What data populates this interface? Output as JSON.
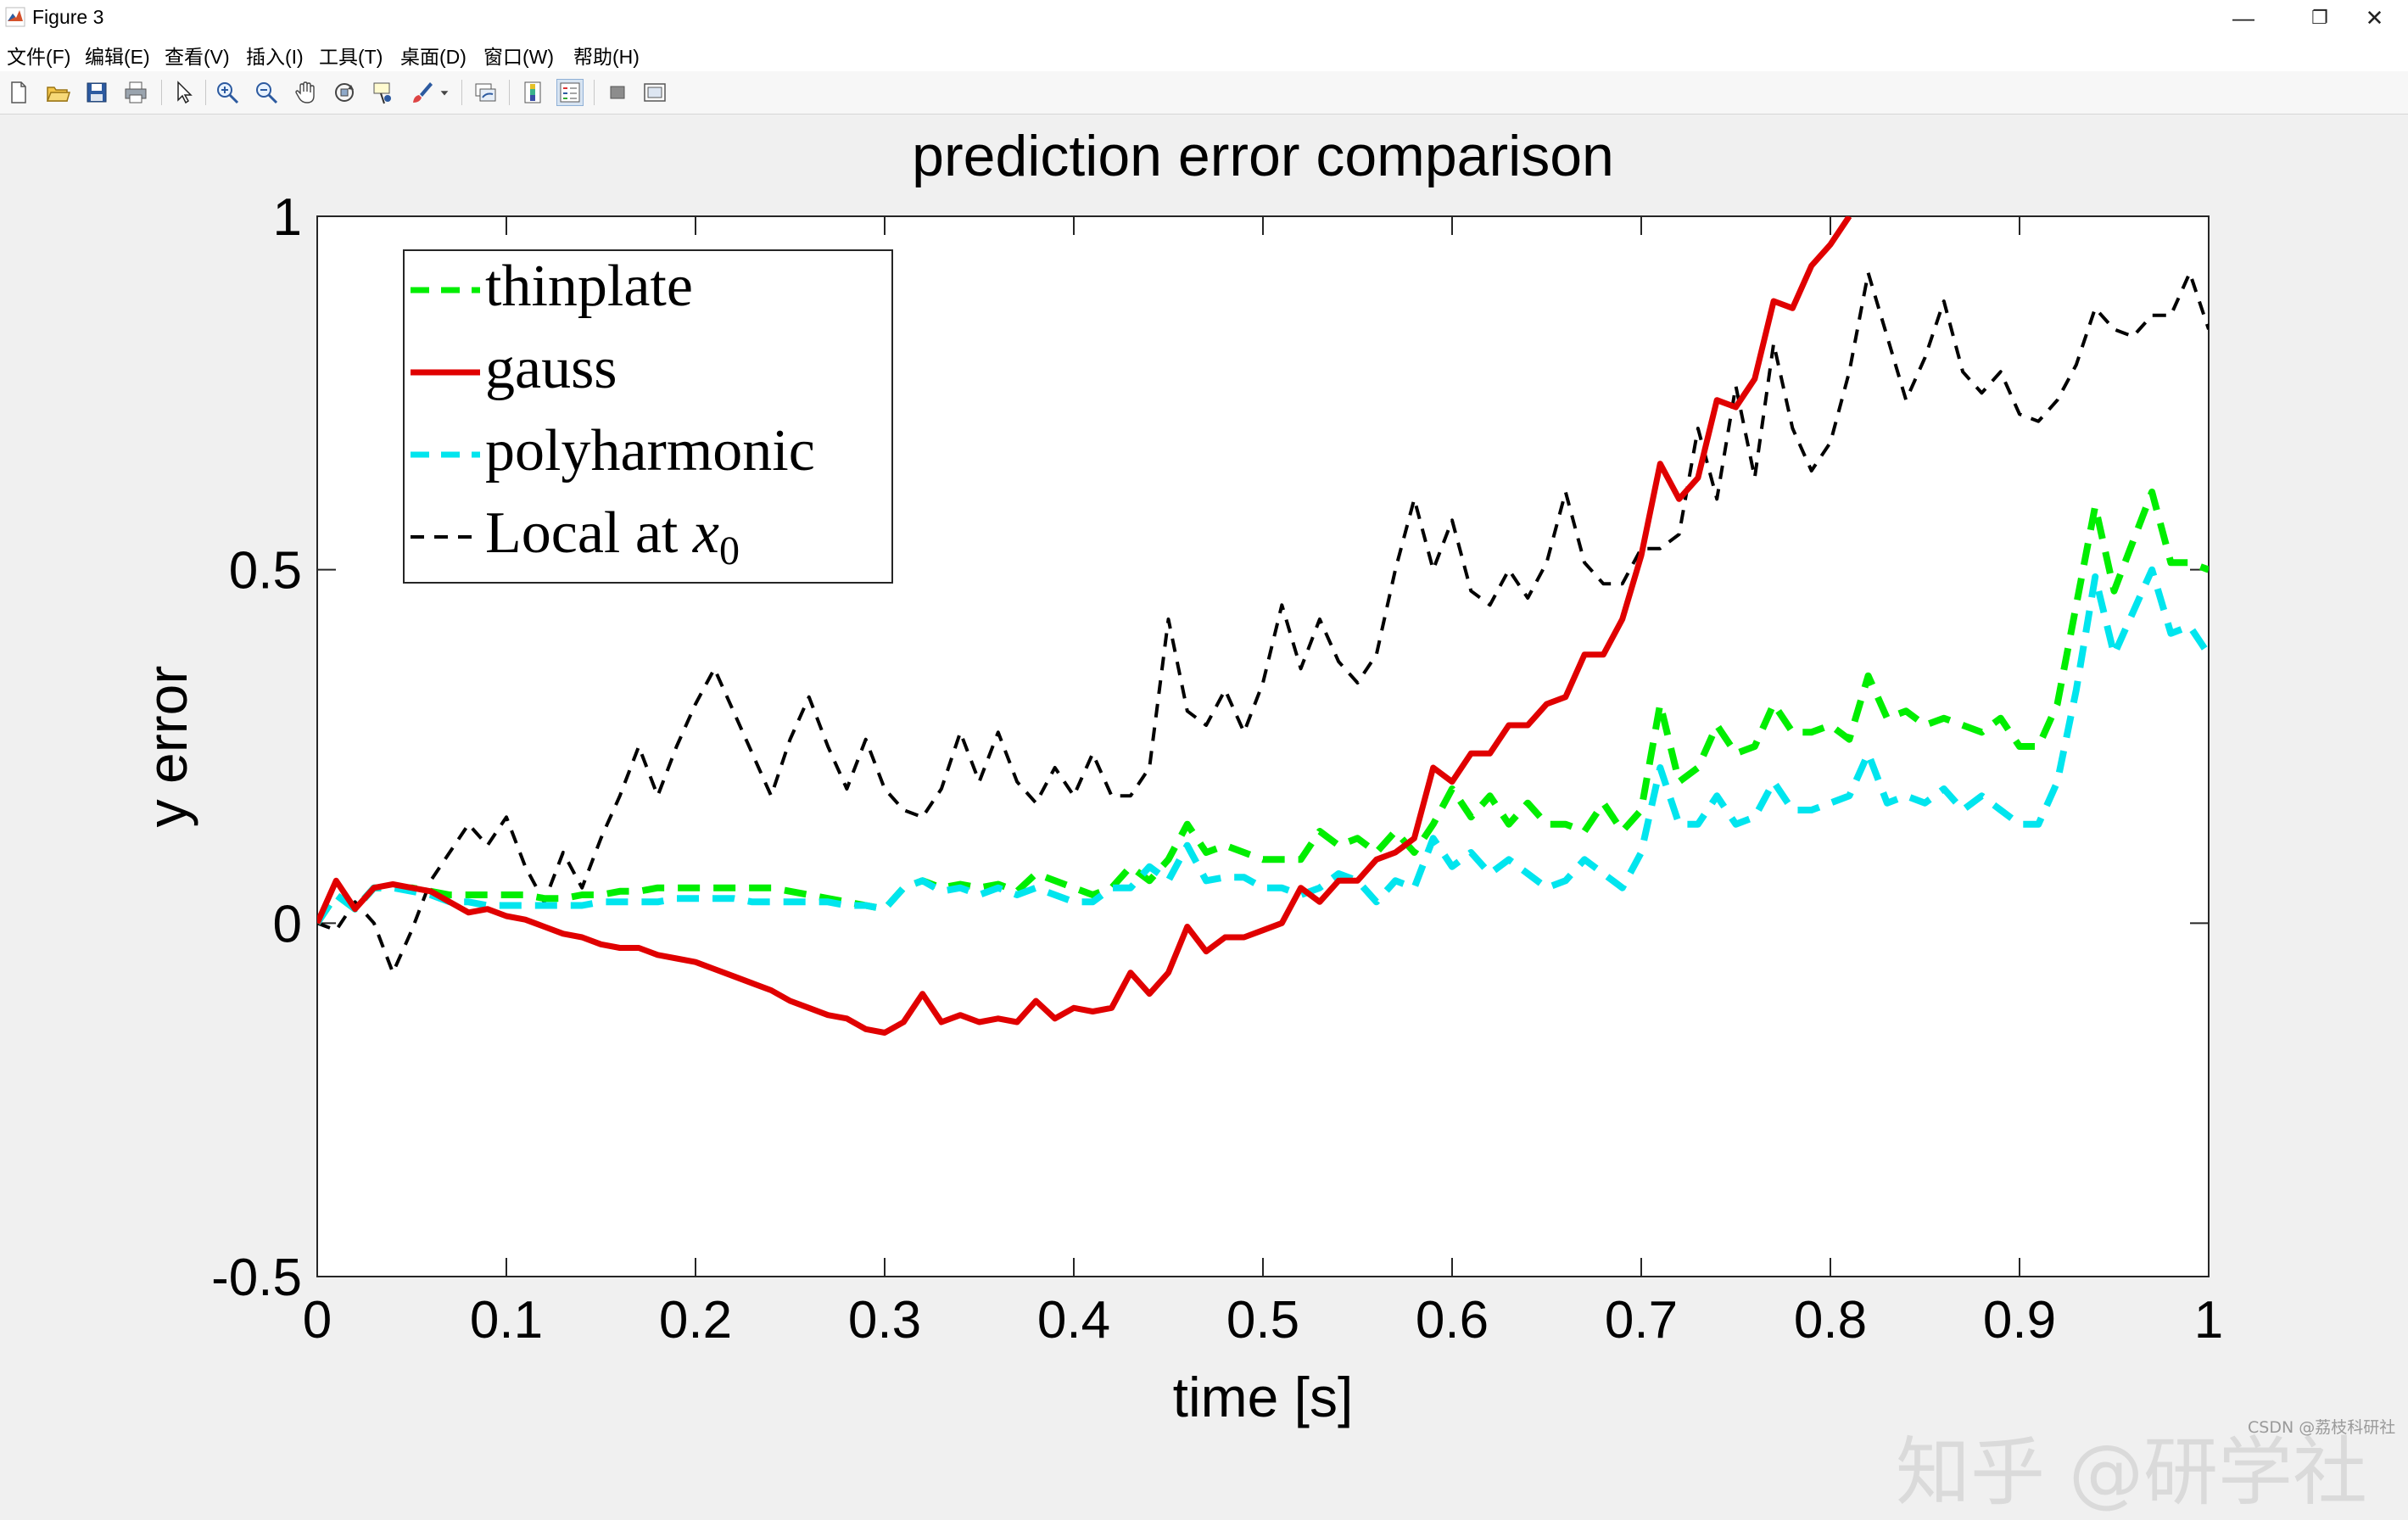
{
  "window": {
    "title": "Figure 3",
    "minimize_glyph": "—",
    "restore_glyph": "❐",
    "close_glyph": "✕"
  },
  "menu": [
    "文件(F)",
    "编辑(E)",
    "查看(V)",
    "插入(I)",
    "工具(T)",
    "桌面(D)",
    "窗口(W)",
    "帮助(H)"
  ],
  "toolbar_icons": [
    "new-figure-icon",
    "open-file-icon",
    "save-icon",
    "print-icon",
    "pointer-icon",
    "zoom-in-icon",
    "zoom-out-icon",
    "pan-hand-icon",
    "rotate-3d-icon",
    "data-cursor-icon",
    "brush-icon",
    "dropdown-arrow-icon",
    "link-plot-icon",
    "colorbar-icon",
    "legend-icon",
    "hide-plot-tools-icon",
    "show-plot-tools-icon"
  ],
  "watermark": "知乎 @研学社",
  "credit": "CSDN @荔枝科研社",
  "colors": {
    "thinplate": "#00ee00",
    "gauss": "#e00000",
    "polyharmonic": "#00e5ee",
    "local": "#000000",
    "axes_bg": "#ffffff",
    "figure_bg": "#f0f0f0"
  },
  "chart_data": {
    "type": "line",
    "title": "prediction error comparison",
    "xlabel": "time [s]",
    "ylabel": "y error",
    "xlim": [
      0,
      1
    ],
    "ylim": [
      -0.5,
      1
    ],
    "xticks": [
      "0",
      "0.1",
      "0.2",
      "0.3",
      "0.4",
      "0.5",
      "0.6",
      "0.7",
      "0.8",
      "0.9",
      "1"
    ],
    "yticks": [
      "-0.5",
      "0",
      "0.5",
      "1"
    ],
    "grid": false,
    "legend_position": "top-left",
    "series": [
      {
        "name": "thinplate",
        "style": "dashed",
        "x": [
          0,
          0.01,
          0.02,
          0.03,
          0.04,
          0.05,
          0.06,
          0.07,
          0.08,
          0.09,
          0.1,
          0.11,
          0.12,
          0.13,
          0.14,
          0.15,
          0.16,
          0.17,
          0.18,
          0.19,
          0.2,
          0.21,
          0.22,
          0.23,
          0.24,
          0.25,
          0.26,
          0.27,
          0.28,
          0.29,
          0.3,
          0.31,
          0.32,
          0.33,
          0.34,
          0.35,
          0.36,
          0.37,
          0.38,
          0.39,
          0.4,
          0.41,
          0.42,
          0.43,
          0.44,
          0.45,
          0.46,
          0.47,
          0.48,
          0.49,
          0.5,
          0.51,
          0.52,
          0.53,
          0.54,
          0.55,
          0.56,
          0.57,
          0.58,
          0.59,
          0.6,
          0.61,
          0.62,
          0.63,
          0.64,
          0.65,
          0.66,
          0.67,
          0.68,
          0.69,
          0.7,
          0.71,
          0.72,
          0.73,
          0.74,
          0.75,
          0.76,
          0.77,
          0.78,
          0.79,
          0.8,
          0.81,
          0.82,
          0.83,
          0.84,
          0.85,
          0.86,
          0.87,
          0.88,
          0.89,
          0.9,
          0.91,
          0.92,
          0.93,
          0.94,
          0.95,
          0.96,
          0.97,
          0.98,
          0.99,
          1.0
        ],
        "y": [
          0,
          0.04,
          0.02,
          0.05,
          0.05,
          0.05,
          0.045,
          0.04,
          0.04,
          0.04,
          0.04,
          0.04,
          0.035,
          0.035,
          0.04,
          0.04,
          0.045,
          0.045,
          0.05,
          0.05,
          0.05,
          0.05,
          0.05,
          0.05,
          0.05,
          0.045,
          0.04,
          0.035,
          0.03,
          0.025,
          0.02,
          0.05,
          0.06,
          0.05,
          0.055,
          0.05,
          0.055,
          0.045,
          0.07,
          0.06,
          0.05,
          0.04,
          0.05,
          0.08,
          0.06,
          0.09,
          0.14,
          0.1,
          0.11,
          0.1,
          0.09,
          0.09,
          0.09,
          0.13,
          0.11,
          0.12,
          0.1,
          0.13,
          0.1,
          0.14,
          0.19,
          0.15,
          0.18,
          0.14,
          0.17,
          0.14,
          0.14,
          0.13,
          0.17,
          0.13,
          0.16,
          0.31,
          0.2,
          0.22,
          0.28,
          0.24,
          0.25,
          0.31,
          0.27,
          0.27,
          0.28,
          0.26,
          0.35,
          0.29,
          0.3,
          0.28,
          0.29,
          0.28,
          0.27,
          0.29,
          0.25,
          0.25,
          0.31,
          0.45,
          0.59,
          0.47,
          0.54,
          0.61,
          0.51,
          0.51,
          0.5
        ]
      },
      {
        "name": "gauss",
        "style": "solid",
        "x": [
          0,
          0.01,
          0.02,
          0.03,
          0.04,
          0.05,
          0.06,
          0.07,
          0.08,
          0.09,
          0.1,
          0.11,
          0.12,
          0.13,
          0.14,
          0.15,
          0.16,
          0.17,
          0.18,
          0.19,
          0.2,
          0.21,
          0.22,
          0.23,
          0.24,
          0.25,
          0.26,
          0.27,
          0.28,
          0.29,
          0.3,
          0.31,
          0.32,
          0.33,
          0.34,
          0.35,
          0.36,
          0.37,
          0.38,
          0.39,
          0.4,
          0.41,
          0.42,
          0.43,
          0.44,
          0.45,
          0.46,
          0.47,
          0.48,
          0.49,
          0.5,
          0.51,
          0.52,
          0.53,
          0.54,
          0.55,
          0.56,
          0.57,
          0.58,
          0.59,
          0.6,
          0.61,
          0.62,
          0.63,
          0.64,
          0.65,
          0.66,
          0.67,
          0.68,
          0.69,
          0.7,
          0.71,
          0.72,
          0.73,
          0.74,
          0.75,
          0.76,
          0.77,
          0.78,
          0.79,
          0.8,
          0.81
        ],
        "y": [
          0,
          0.06,
          0.02,
          0.05,
          0.055,
          0.05,
          0.045,
          0.03,
          0.015,
          0.02,
          0.01,
          0.005,
          -0.005,
          -0.015,
          -0.02,
          -0.03,
          -0.035,
          -0.035,
          -0.045,
          -0.05,
          -0.055,
          -0.065,
          -0.075,
          -0.085,
          -0.095,
          -0.11,
          -0.12,
          -0.13,
          -0.135,
          -0.15,
          -0.155,
          -0.14,
          -0.1,
          -0.14,
          -0.13,
          -0.14,
          -0.135,
          -0.14,
          -0.11,
          -0.135,
          -0.12,
          -0.125,
          -0.12,
          -0.07,
          -0.1,
          -0.07,
          -0.005,
          -0.04,
          -0.02,
          -0.02,
          -0.01,
          0,
          0.05,
          0.03,
          0.06,
          0.06,
          0.09,
          0.1,
          0.12,
          0.22,
          0.2,
          0.24,
          0.24,
          0.28,
          0.28,
          0.31,
          0.32,
          0.38,
          0.38,
          0.43,
          0.52,
          0.65,
          0.6,
          0.63,
          0.74,
          0.73,
          0.77,
          0.88,
          0.87,
          0.93,
          0.96,
          1.0
        ]
      },
      {
        "name": "polyharmonic",
        "style": "dashed",
        "x": [
          0,
          0.01,
          0.02,
          0.03,
          0.04,
          0.05,
          0.06,
          0.07,
          0.08,
          0.09,
          0.1,
          0.11,
          0.12,
          0.13,
          0.14,
          0.15,
          0.16,
          0.17,
          0.18,
          0.19,
          0.2,
          0.21,
          0.22,
          0.23,
          0.24,
          0.25,
          0.26,
          0.27,
          0.28,
          0.29,
          0.3,
          0.31,
          0.32,
          0.33,
          0.34,
          0.35,
          0.36,
          0.37,
          0.38,
          0.39,
          0.4,
          0.41,
          0.42,
          0.43,
          0.44,
          0.45,
          0.46,
          0.47,
          0.48,
          0.49,
          0.5,
          0.51,
          0.52,
          0.53,
          0.54,
          0.55,
          0.56,
          0.57,
          0.58,
          0.59,
          0.6,
          0.61,
          0.62,
          0.63,
          0.64,
          0.65,
          0.66,
          0.67,
          0.68,
          0.69,
          0.7,
          0.71,
          0.72,
          0.73,
          0.74,
          0.75,
          0.76,
          0.77,
          0.78,
          0.79,
          0.8,
          0.81,
          0.82,
          0.83,
          0.84,
          0.85,
          0.86,
          0.87,
          0.88,
          0.89,
          0.9,
          0.91,
          0.92,
          0.93,
          0.94,
          0.95,
          0.96,
          0.97,
          0.98,
          0.99,
          1.0
        ],
        "y": [
          0,
          0.04,
          0.02,
          0.05,
          0.05,
          0.045,
          0.04,
          0.03,
          0.03,
          0.025,
          0.025,
          0.025,
          0.025,
          0.025,
          0.025,
          0.03,
          0.03,
          0.03,
          0.03,
          0.035,
          0.035,
          0.035,
          0.035,
          0.03,
          0.03,
          0.03,
          0.03,
          0.03,
          0.025,
          0.025,
          0.02,
          0.05,
          0.06,
          0.045,
          0.05,
          0.04,
          0.05,
          0.04,
          0.05,
          0.04,
          0.03,
          0.03,
          0.05,
          0.05,
          0.08,
          0.06,
          0.11,
          0.06,
          0.065,
          0.065,
          0.05,
          0.05,
          0.04,
          0.05,
          0.07,
          0.06,
          0.03,
          0.06,
          0.05,
          0.12,
          0.08,
          0.1,
          0.07,
          0.09,
          0.07,
          0.05,
          0.06,
          0.09,
          0.07,
          0.05,
          0.1,
          0.22,
          0.14,
          0.14,
          0.18,
          0.14,
          0.15,
          0.2,
          0.16,
          0.16,
          0.17,
          0.18,
          0.24,
          0.17,
          0.18,
          0.17,
          0.19,
          0.16,
          0.18,
          0.16,
          0.14,
          0.14,
          0.2,
          0.33,
          0.49,
          0.38,
          0.44,
          0.5,
          0.41,
          0.42,
          0.38
        ]
      },
      {
        "name": "Local at x0",
        "style": "dashed-thin",
        "x": [
          0,
          0.01,
          0.02,
          0.03,
          0.04,
          0.05,
          0.06,
          0.07,
          0.08,
          0.09,
          0.1,
          0.11,
          0.12,
          0.13,
          0.14,
          0.15,
          0.16,
          0.17,
          0.18,
          0.19,
          0.2,
          0.21,
          0.22,
          0.23,
          0.24,
          0.25,
          0.26,
          0.27,
          0.28,
          0.29,
          0.3,
          0.31,
          0.32,
          0.33,
          0.34,
          0.35,
          0.36,
          0.37,
          0.38,
          0.39,
          0.4,
          0.41,
          0.42,
          0.43,
          0.44,
          0.45,
          0.46,
          0.47,
          0.48,
          0.49,
          0.5,
          0.51,
          0.52,
          0.53,
          0.54,
          0.55,
          0.56,
          0.57,
          0.58,
          0.59,
          0.6,
          0.61,
          0.62,
          0.63,
          0.64,
          0.65,
          0.66,
          0.67,
          0.68,
          0.69,
          0.7,
          0.71,
          0.72,
          0.73,
          0.74,
          0.75,
          0.76,
          0.77,
          0.78,
          0.79,
          0.8,
          0.81,
          0.82,
          0.83,
          0.84,
          0.85,
          0.86,
          0.87,
          0.88,
          0.89,
          0.9,
          0.91,
          0.92,
          0.93,
          0.94,
          0.95,
          0.96,
          0.97,
          0.98,
          0.99,
          1.0
        ],
        "y": [
          0,
          -0.01,
          0.03,
          0,
          -0.07,
          -0.01,
          0.06,
          0.1,
          0.14,
          0.11,
          0.15,
          0.08,
          0.03,
          0.1,
          0.05,
          0.12,
          0.18,
          0.25,
          0.18,
          0.25,
          0.31,
          0.36,
          0.3,
          0.24,
          0.18,
          0.26,
          0.32,
          0.25,
          0.19,
          0.26,
          0.19,
          0.16,
          0.15,
          0.19,
          0.27,
          0.2,
          0.27,
          0.2,
          0.17,
          0.22,
          0.18,
          0.24,
          0.18,
          0.18,
          0.22,
          0.43,
          0.3,
          0.28,
          0.33,
          0.27,
          0.34,
          0.45,
          0.36,
          0.43,
          0.37,
          0.34,
          0.38,
          0.5,
          0.6,
          0.5,
          0.57,
          0.47,
          0.45,
          0.5,
          0.46,
          0.51,
          0.61,
          0.51,
          0.48,
          0.48,
          0.53,
          0.53,
          0.55,
          0.7,
          0.6,
          0.76,
          0.63,
          0.82,
          0.7,
          0.64,
          0.68,
          0.78,
          0.92,
          0.83,
          0.74,
          0.8,
          0.88,
          0.78,
          0.75,
          0.78,
          0.72,
          0.71,
          0.74,
          0.79,
          0.87,
          0.84,
          0.83,
          0.86,
          0.86,
          0.92,
          0.84
        ]
      }
    ],
    "legend": {
      "entries": [
        {
          "key": "thinplate",
          "label": "thinplate",
          "math": false
        },
        {
          "key": "gauss",
          "label": "gauss",
          "math": false
        },
        {
          "key": "polyharmonic",
          "label": "polyharmonic",
          "math": false
        },
        {
          "key": "local",
          "label": "Local at ",
          "math_var": "x",
          "math_sub": "0",
          "math": true
        }
      ]
    }
  }
}
